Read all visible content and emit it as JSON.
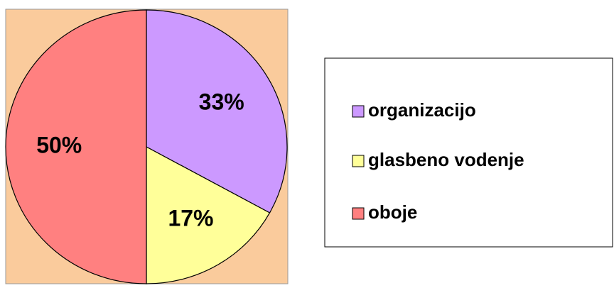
{
  "chart_data": {
    "type": "pie",
    "series": [
      {
        "name": "organizacijo",
        "color": "#CC99FF"
      },
      {
        "name": "glasbeno vodenje",
        "color": "#FFFF99"
      },
      {
        "name": "oboje",
        "color": "#FF8080"
      }
    ],
    "values": [
      33,
      17,
      50
    ],
    "value_labels": [
      "33%",
      "17%",
      "50%"
    ],
    "background": "#FACB9C",
    "legend": "right"
  }
}
